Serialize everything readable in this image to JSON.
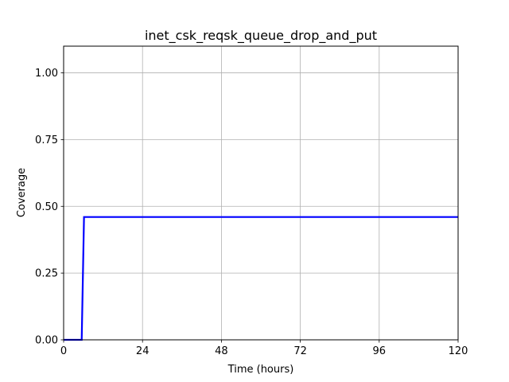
{
  "chart_data": {
    "type": "line",
    "title": "inet_csk_reqsk_queue_drop_and_put",
    "xlabel": "Time (hours)",
    "ylabel": "Coverage",
    "xlim": [
      0,
      120
    ],
    "ylim": [
      0,
      1.1
    ],
    "xticks": [
      0,
      24,
      48,
      72,
      96,
      120
    ],
    "xtick_labels": [
      "0",
      "24",
      "48",
      "72",
      "96",
      "120"
    ],
    "yticks": [
      0,
      0.25,
      0.5,
      0.75,
      1.0
    ],
    "ytick_labels": [
      "0.00",
      "0.25",
      "0.50",
      "0.75",
      "1.00"
    ],
    "grid": true,
    "series": [
      {
        "color": "#0000ff",
        "x": [
          0,
          5.5,
          6.2,
          120
        ],
        "y": [
          0,
          0,
          0.46,
          0.46
        ]
      }
    ]
  }
}
